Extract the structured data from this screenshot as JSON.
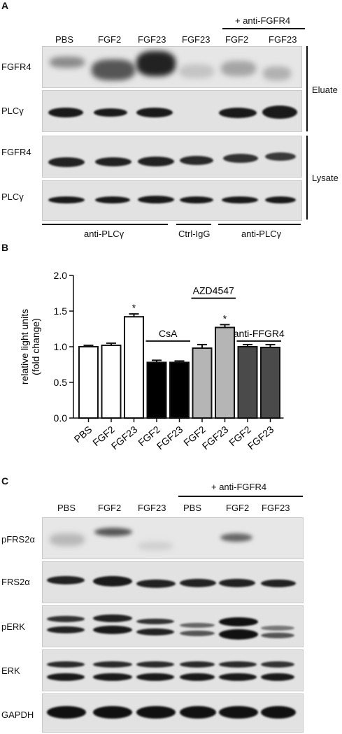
{
  "panelA": {
    "letter": "A",
    "lanes": [
      "PBS",
      "FGF2",
      "FGF23",
      "FGF23",
      "FGF2",
      "FGF23"
    ],
    "treatment_header": "+ anti-FGFR4",
    "rows": [
      "FGFR4",
      "PLCγ",
      "FGFR4",
      "PLCγ"
    ],
    "group_eluate": "Eluate",
    "group_lysate": "Lysate",
    "ip_labels": [
      "anti-PLCγ",
      "Ctrl-IgG",
      "anti-PLCγ"
    ]
  },
  "panelB": {
    "letter": "B",
    "groups": [
      "CsA",
      "AZD4547",
      "anti-FFGR4"
    ],
    "star": "*"
  },
  "chart_data": {
    "type": "bar",
    "categories": [
      "PBS",
      "FGF2",
      "FGF23",
      "FGF2",
      "FGF23",
      "FGF2",
      "FGF23",
      "FGF2",
      "FGF23"
    ],
    "values": [
      1.0,
      1.02,
      1.42,
      0.78,
      0.78,
      0.98,
      1.27,
      1.0,
      0.99
    ],
    "errors": [
      0.02,
      0.03,
      0.04,
      0.03,
      0.02,
      0.05,
      0.04,
      0.03,
      0.04
    ],
    "bar_fills": [
      "#ffffff",
      "#ffffff",
      "#ffffff",
      "#000000",
      "#000000",
      "#b5b5b5",
      "#b5b5b5",
      "#4a4a4a",
      "#4a4a4a"
    ],
    "significant": [
      false,
      false,
      true,
      false,
      false,
      false,
      true,
      false,
      false
    ],
    "ylabel": "relative light units\n(fold change)",
    "ylim": [
      0,
      2.0
    ],
    "yticks": [
      "0.0",
      "0.5",
      "1.0",
      "1.5",
      "2.0"
    ],
    "xlabel": "",
    "title": ""
  },
  "panelC": {
    "letter": "C",
    "treatment_header": "+ anti-FGFR4",
    "lanes": [
      "PBS",
      "FGF2",
      "FGF23",
      "PBS",
      "FGF2",
      "FGF23"
    ],
    "rows": [
      "pFRS2α",
      "FRS2α",
      "pERK",
      "ERK",
      "GAPDH"
    ]
  }
}
